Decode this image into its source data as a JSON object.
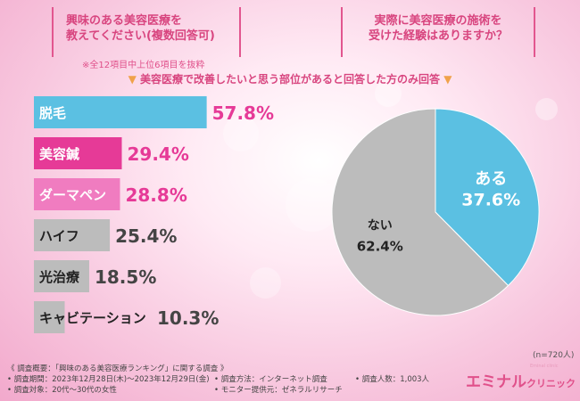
{
  "header": {
    "q1_line1": "興味のある美容医療を",
    "q1_line2": "教えてください(複数回答可)",
    "q2_line1": "実際に美容医療の施術を",
    "q2_line2": "受けた経験はありますか？",
    "note": "※全12項目中上位6項目を抜粋",
    "subnote_text": "美容医療で改善したいと思う部位があると回答した方のみ回答"
  },
  "colors": {
    "bar_blue": "#5bc0e2",
    "bar_magenta": "#e63a97",
    "bar_pink": "#f07cc0",
    "bar_gray": "#bcbcbc",
    "pie_blue": "#5bc0e2",
    "pie_gray": "#bcbcbc",
    "accent_pink": "#d8457f"
  },
  "chart_data": [
    {
      "type": "bar",
      "categories": [
        "脱毛",
        "美容鍼",
        "ダーマペン",
        "ハイフ",
        "光治療",
        "キャビテーション"
      ],
      "values": [
        57.8,
        29.4,
        28.8,
        25.4,
        18.5,
        10.3
      ],
      "value_labels": [
        "57.8%",
        "29.4%",
        "28.8%",
        "25.4%",
        "18.5%",
        "10.3%"
      ]
    },
    {
      "type": "pie",
      "labels": [
        "ある",
        "ない"
      ],
      "values": [
        37.6,
        62.4
      ],
      "value_labels": [
        "37.6%",
        "62.4%"
      ]
    }
  ],
  "sample_size": "(n=720人)",
  "footer": {
    "survey_name": "《 調査概要：「興味のある美容医療ランキング」に関する調査 》",
    "period": "• 調査期間：2023年12月28日(木)～2023年12月29日(金)",
    "target": "• 調査対象：20代～30代の女性",
    "method": "• 調査方法：インターネット調査",
    "provider": "• モニター提供元：ゼネラルリサーチ",
    "count": "• 調査人数：1,003人"
  },
  "logo": {
    "main": "エミナル",
    "sub": "クリニック",
    "tiny": "Eminal clinic"
  }
}
